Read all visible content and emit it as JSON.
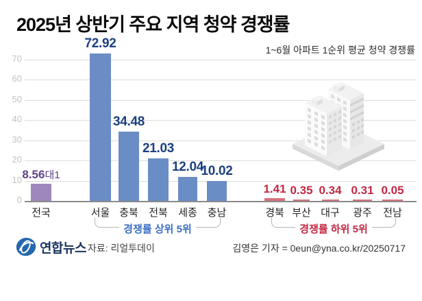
{
  "header": {
    "title": "2025년 상반기 주요 지역 청약 경쟁률",
    "subtitle": "1~6월 아파트 1순위 평균 청약 경쟁률"
  },
  "chart_data": {
    "type": "bar",
    "title": "2025년 상반기 주요 지역 청약 경쟁률",
    "subtitle": "1~6월 아파트 1순위 평균 청약 경쟁률",
    "categories": [
      "전국",
      "서울",
      "충북",
      "전북",
      "세종",
      "충남",
      "경북",
      "부산",
      "대구",
      "광주",
      "전남"
    ],
    "values": [
      8.56,
      72.92,
      34.48,
      21.03,
      12.04,
      10.02,
      1.41,
      0.35,
      0.34,
      0.31,
      0.05
    ],
    "value_labels": [
      "8.56대1",
      "72.92",
      "34.48",
      "21.03",
      "12.04",
      "10.02",
      "1.41",
      "0.35",
      "0.34",
      "0.31",
      "0.05"
    ],
    "national_label": {
      "value": "8.56",
      "suffix": "대1"
    },
    "groups": [
      "national",
      "top5",
      "top5",
      "top5",
      "top5",
      "top5",
      "bottom5",
      "bottom5",
      "bottom5",
      "bottom5",
      "bottom5"
    ],
    "group_labels": {
      "top5": "경쟁률 상위 5위",
      "bottom5": "경쟁률 하위 5위"
    },
    "yticks": [
      0,
      10,
      20,
      30,
      40,
      50,
      60,
      70
    ],
    "ylim": [
      0,
      70
    ],
    "grid": true,
    "legend": "none",
    "colors": {
      "national": "#9e88bb",
      "top5": "#6a8dc6",
      "bottom5": "#d5707a"
    },
    "label_colors": {
      "national": "#5d3f85",
      "top5": "#1b4080",
      "bottom5": "#c22742"
    }
  },
  "illustration": {
    "name": "apartment-buildings"
  },
  "footer": {
    "logo_text": "연합뉴스",
    "source": "자료: 리얼투데이",
    "credit": "김영은 기자 = 0eun@yna.co.kr/20250717"
  }
}
